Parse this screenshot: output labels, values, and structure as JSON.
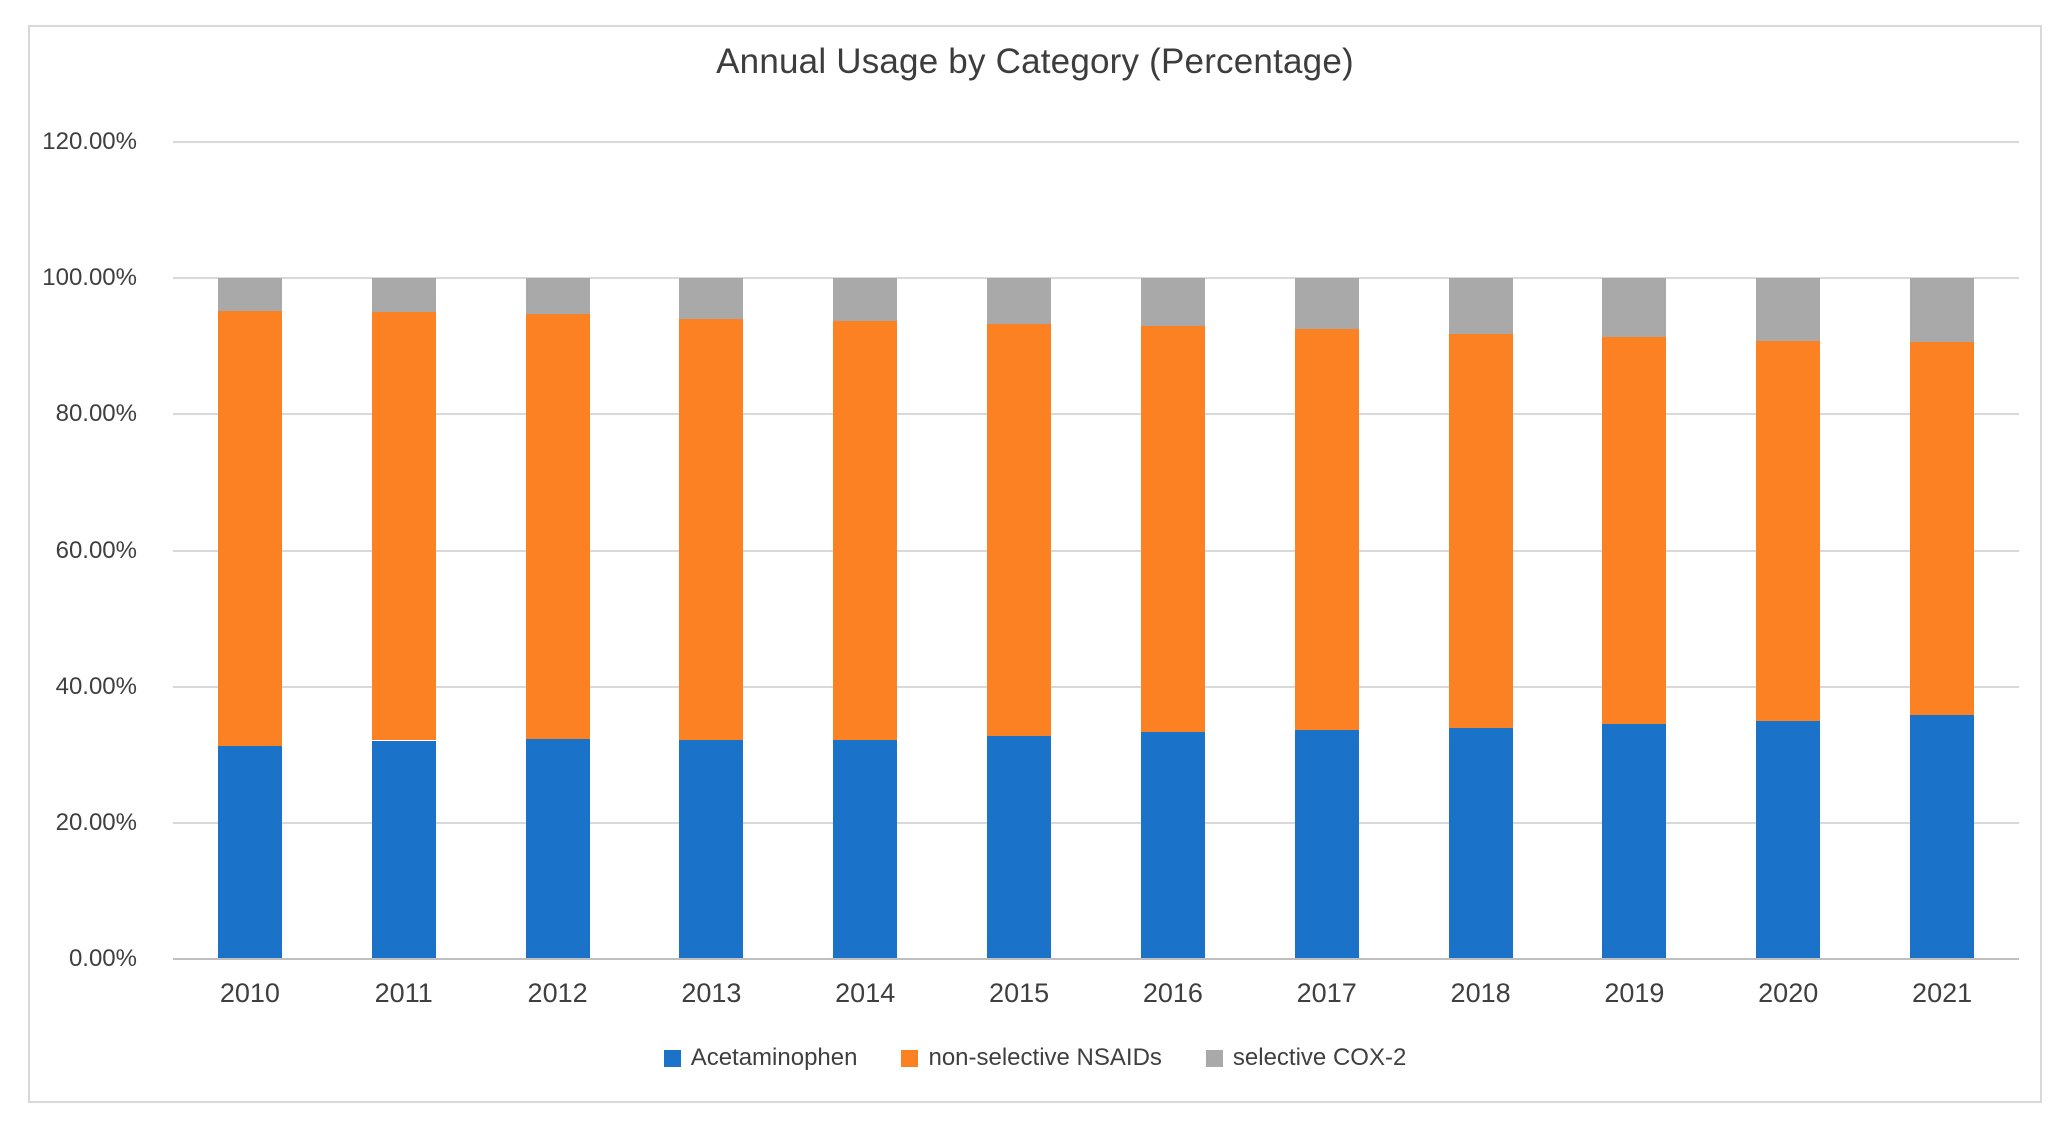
{
  "chart_data": {
    "type": "bar",
    "stacked": true,
    "title": "Annual Usage by Category (Percentage)",
    "categories": [
      "2010",
      "2011",
      "2012",
      "2013",
      "2014",
      "2015",
      "2016",
      "2017",
      "2018",
      "2019",
      "2020",
      "2021"
    ],
    "series": [
      {
        "name": "Acetaminophen",
        "color": "#1A73C8",
        "values": [
          31.3,
          32.1,
          32.3,
          32.2,
          32.2,
          32.8,
          33.3,
          33.6,
          33.9,
          34.5,
          35.0,
          35.9
        ]
      },
      {
        "name": "non-selective NSAIDs",
        "color": "#FB8122",
        "values": [
          63.9,
          63.0,
          62.4,
          61.8,
          61.5,
          60.5,
          59.7,
          58.9,
          57.9,
          56.8,
          55.8,
          54.7
        ]
      },
      {
        "name": "selective COX-2",
        "color": "#A9A9A9",
        "values": [
          4.8,
          4.9,
          5.3,
          6.0,
          6.3,
          6.7,
          7.0,
          7.5,
          8.2,
          8.7,
          9.2,
          9.4
        ]
      }
    ],
    "xlabel": "",
    "ylabel": "",
    "ylim": [
      0,
      120
    ],
    "y_ticks": [
      {
        "value": 0,
        "label": "0.00%"
      },
      {
        "value": 20,
        "label": "20.00%"
      },
      {
        "value": 40,
        "label": "40.00%"
      },
      {
        "value": 60,
        "label": "60.00%"
      },
      {
        "value": 80,
        "label": "80.00%"
      },
      {
        "value": 100,
        "label": "100.00%"
      },
      {
        "value": 120,
        "label": "120.00%"
      }
    ],
    "grid": true,
    "legend_position": "bottom",
    "colors": {
      "gridline": "#D9D9D9",
      "axis_line": "#BFBFBF",
      "frame_border": "#D9D9D9",
      "text": "#3f3f3f"
    }
  }
}
